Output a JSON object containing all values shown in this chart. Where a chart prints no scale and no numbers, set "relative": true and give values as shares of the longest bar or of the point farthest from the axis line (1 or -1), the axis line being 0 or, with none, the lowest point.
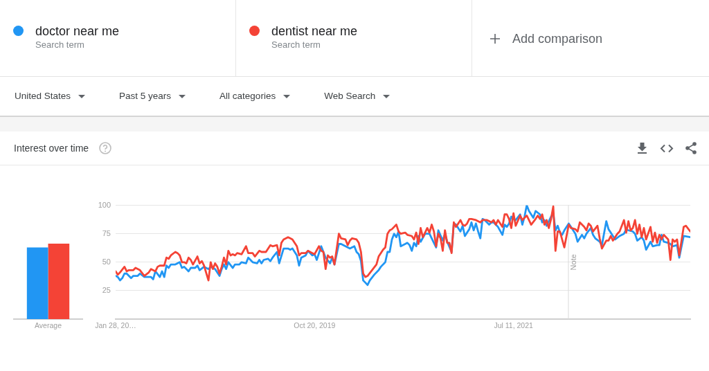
{
  "chart_data": [
    {
      "type": "bar",
      "categories": [
        "Average"
      ],
      "relative": true,
      "series": [
        {
          "color": "#2196f3",
          "values": [
            0.95
          ]
        },
        {
          "color": "#f44336",
          "values": [
            1
          ]
        }
      ]
    },
    {
      "type": "line",
      "title": "Interest over time",
      "annotations": [
        "Search term",
        "Search term",
        "Add comparison",
        "United States",
        "Past 5 years",
        "All categories",
        "Web Search"
      ],
      "legend": "top",
      "grid": "y",
      "xlim": [
        "2018-01-28",
        "2023-01-22"
      ],
      "xticks": [
        {
          "value": "2018-01-28",
          "label": "Jan 28, 20…"
        },
        {
          "value": "2019-10-20",
          "label": "Oct 20, 2019"
        },
        {
          "value": "2021-07-11",
          "label": "Jul 11, 2021"
        }
      ],
      "ylim": [
        0,
        100
      ],
      "yticks": [
        25,
        50,
        75,
        100
      ],
      "ref_lines": [
        {
          "axis": "x",
          "value": "2022-01-01",
          "label": "Note"
        }
      ],
      "series": [
        {
          "name": "doctor near me",
          "color": "#2196f3",
          "x": [
            "2018-01-28",
            "2018-02-04",
            "2018-02-11",
            "2018-02-18",
            "2018-02-25",
            "2018-03-04",
            "2018-03-18",
            "2018-03-25",
            "2018-04-08",
            "2018-04-15",
            "2018-04-29",
            "2018-05-13",
            "2018-05-20",
            "2018-05-27",
            "2018-06-03",
            "2018-06-17",
            "2018-06-24",
            "2018-07-01",
            "2018-07-08",
            "2018-07-15",
            "2018-07-22",
            "2018-08-05",
            "2018-08-19",
            "2018-08-26",
            "2018-09-02",
            "2018-09-16",
            "2018-09-23",
            "2018-10-07",
            "2018-10-14",
            "2018-10-21",
            "2018-11-04",
            "2018-11-18",
            "2018-11-25",
            "2018-12-09",
            "2018-12-23",
            "2018-12-30",
            "2019-01-06",
            "2019-01-13",
            "2019-01-20",
            "2019-02-03",
            "2019-02-10",
            "2019-02-24",
            "2019-03-03",
            "2019-03-17",
            "2019-03-24",
            "2019-04-07",
            "2019-04-21",
            "2019-04-28",
            "2019-05-05",
            "2019-05-12",
            "2019-05-26",
            "2019-06-02",
            "2019-06-09",
            "2019-06-23",
            "2019-06-30",
            "2019-07-14",
            "2019-07-28",
            "2019-08-04",
            "2019-08-11",
            "2019-08-25",
            "2019-09-01",
            "2019-09-08",
            "2019-09-22",
            "2019-09-29",
            "2019-10-13",
            "2019-10-20",
            "2019-10-27",
            "2019-11-10",
            "2019-11-17",
            "2019-11-24",
            "2019-12-08",
            "2019-12-15",
            "2019-12-22",
            "2020-01-05",
            "2020-01-12",
            "2020-01-26",
            "2020-02-09",
            "2020-02-23",
            "2020-03-01",
            "2020-03-08",
            "2020-03-15",
            "2020-03-22",
            "2020-03-29",
            "2020-04-05",
            "2020-04-12",
            "2020-04-26",
            "2020-05-10",
            "2020-05-17",
            "2020-05-31",
            "2020-06-07",
            "2020-06-14",
            "2020-06-21",
            "2020-06-28",
            "2020-07-05",
            "2020-07-12",
            "2020-07-19",
            "2020-08-02",
            "2020-08-09",
            "2020-08-16",
            "2020-08-23",
            "2020-08-30",
            "2020-09-06",
            "2020-09-13",
            "2020-09-20",
            "2020-10-04",
            "2020-10-18",
            "2020-10-25",
            "2020-11-08",
            "2020-11-15",
            "2020-11-29",
            "2020-12-06",
            "2020-12-13",
            "2020-12-27",
            "2021-01-03",
            "2021-01-10",
            "2021-01-24",
            "2021-01-31",
            "2021-02-07",
            "2021-02-21",
            "2021-02-28",
            "2021-03-07",
            "2021-03-14",
            "2021-03-21",
            "2021-03-28",
            "2021-04-04",
            "2021-04-11",
            "2021-04-25",
            "2021-05-02",
            "2021-05-09",
            "2021-05-16",
            "2021-05-23",
            "2021-06-06",
            "2021-06-13",
            "2021-06-20",
            "2021-06-27",
            "2021-07-04",
            "2021-07-11",
            "2021-07-18",
            "2021-08-01",
            "2021-08-08",
            "2021-08-15",
            "2021-08-22",
            "2021-08-29",
            "2021-09-12",
            "2021-09-19",
            "2021-10-03",
            "2021-10-10",
            "2021-10-17",
            "2021-10-24",
            "2021-11-07",
            "2021-11-14",
            "2021-11-21",
            "2021-11-28",
            "2021-12-05",
            "2021-12-12",
            "2021-12-19",
            "2022-01-02",
            "2022-01-09",
            "2022-01-23",
            "2022-01-30",
            "2022-02-13",
            "2022-02-20",
            "2022-02-27",
            "2022-03-13",
            "2022-03-20",
            "2022-03-27",
            "2022-04-10",
            "2022-04-17",
            "2022-05-01",
            "2022-05-08",
            "2022-05-22",
            "2022-05-29",
            "2022-06-12",
            "2022-06-26",
            "2022-07-03",
            "2022-07-10",
            "2022-07-24",
            "2022-07-31",
            "2022-08-07",
            "2022-08-21",
            "2022-08-28",
            "2022-09-04",
            "2022-09-18",
            "2022-09-25",
            "2022-10-09",
            "2022-10-16",
            "2022-10-23",
            "2022-10-30",
            "2022-11-13",
            "2022-11-20",
            "2022-11-27",
            "2022-12-11",
            "2022-12-18",
            "2023-01-01",
            "2023-01-22"
          ],
          "values": [
            38,
            37,
            34,
            36,
            40,
            40,
            36,
            38,
            38,
            40,
            37,
            37,
            37,
            35,
            42,
            37,
            42,
            37,
            47,
            45,
            48,
            48,
            50,
            45,
            46,
            42,
            45,
            45,
            47,
            43,
            46,
            44,
            46,
            44,
            38,
            44,
            48,
            44,
            50,
            45,
            48,
            48,
            50,
            49,
            54,
            50,
            49,
            52,
            49,
            52,
            53,
            51,
            54,
            59,
            49,
            62,
            62,
            61,
            62,
            56,
            47,
            54,
            56,
            60,
            56,
            57,
            52,
            64,
            59,
            54,
            49,
            54,
            48,
            66,
            66,
            64,
            62,
            64,
            59,
            57,
            51,
            34,
            32,
            30,
            34,
            39,
            43,
            46,
            50,
            59,
            59,
            70,
            75,
            72,
            77,
            64,
            66,
            67,
            65,
            60,
            67,
            64,
            73,
            68,
            75,
            75,
            71,
            63,
            78,
            69,
            75,
            68,
            59,
            84,
            83,
            77,
            82,
            73,
            79,
            85,
            78,
            84,
            77,
            71,
            88,
            87,
            83,
            85,
            85,
            83,
            81,
            74,
            83,
            81,
            84,
            90,
            88,
            87,
            92,
            83,
            90,
            100,
            95,
            89,
            95,
            92,
            85,
            87,
            82,
            90,
            93,
            78,
            82,
            76,
            74,
            78,
            84,
            81,
            75,
            68,
            74,
            71,
            75,
            80,
            74,
            71,
            68,
            65,
            86,
            79,
            73,
            70,
            73,
            75,
            79,
            78,
            77,
            75,
            69,
            72,
            69,
            61,
            68,
            64,
            65,
            65,
            74,
            68,
            67,
            66,
            64,
            65,
            54,
            73,
            72
          ]
        },
        {
          "name": "dentist near me",
          "color": "#f44336",
          "x": [
            "2018-01-28",
            "2018-02-04",
            "2018-02-11",
            "2018-02-25",
            "2018-03-04",
            "2018-03-11",
            "2018-03-25",
            "2018-04-01",
            "2018-04-15",
            "2018-04-29",
            "2018-05-13",
            "2018-05-20",
            "2018-06-03",
            "2018-06-10",
            "2018-06-17",
            "2018-07-01",
            "2018-07-08",
            "2018-07-15",
            "2018-07-22",
            "2018-08-05",
            "2018-08-12",
            "2018-08-19",
            "2018-08-26",
            "2018-09-02",
            "2018-09-09",
            "2018-09-16",
            "2018-09-23",
            "2018-09-30",
            "2018-10-14",
            "2018-10-21",
            "2018-10-28",
            "2018-11-04",
            "2018-11-18",
            "2018-11-25",
            "2018-12-02",
            "2018-12-09",
            "2018-12-16",
            "2018-12-23",
            "2018-12-30",
            "2019-01-06",
            "2019-01-13",
            "2019-01-20",
            "2019-01-27",
            "2019-02-03",
            "2019-02-10",
            "2019-02-17",
            "2019-03-03",
            "2019-03-17",
            "2019-03-24",
            "2019-04-07",
            "2019-04-14",
            "2019-04-28",
            "2019-05-05",
            "2019-05-19",
            "2019-06-02",
            "2019-06-09",
            "2019-06-23",
            "2019-06-30",
            "2019-07-07",
            "2019-07-14",
            "2019-07-28",
            "2019-08-04",
            "2019-08-11",
            "2019-08-25",
            "2019-09-01",
            "2019-09-08",
            "2019-09-22",
            "2019-09-29",
            "2019-10-13",
            "2019-10-20",
            "2019-11-03",
            "2019-11-10",
            "2019-11-17",
            "2019-11-24",
            "2019-12-01",
            "2019-12-08",
            "2019-12-15",
            "2019-12-22",
            "2020-01-05",
            "2020-01-12",
            "2020-01-26",
            "2020-02-02",
            "2020-02-09",
            "2020-02-16",
            "2020-03-01",
            "2020-03-08",
            "2020-03-15",
            "2020-03-22",
            "2020-03-29",
            "2020-04-05",
            "2020-04-19",
            "2020-05-03",
            "2020-05-10",
            "2020-05-24",
            "2020-05-31",
            "2020-06-07",
            "2020-06-14",
            "2020-06-21",
            "2020-07-05",
            "2020-07-12",
            "2020-07-19",
            "2020-08-02",
            "2020-08-09",
            "2020-08-23",
            "2020-08-30",
            "2020-09-06",
            "2020-09-13",
            "2020-09-20",
            "2020-09-27",
            "2020-10-04",
            "2020-10-11",
            "2020-10-18",
            "2020-10-25",
            "2020-11-01",
            "2020-11-08",
            "2020-11-15",
            "2020-11-22",
            "2020-11-29",
            "2020-12-06",
            "2020-12-13",
            "2020-12-20",
            "2020-12-27",
            "2021-01-03",
            "2021-01-10",
            "2021-01-17",
            "2021-01-24",
            "2021-01-31",
            "2021-02-07",
            "2021-02-14",
            "2021-02-21",
            "2021-02-28",
            "2021-03-14",
            "2021-03-28",
            "2021-04-04",
            "2021-04-18",
            "2021-04-25",
            "2021-05-02",
            "2021-05-09",
            "2021-05-16",
            "2021-05-23",
            "2021-06-06",
            "2021-06-13",
            "2021-06-20",
            "2021-06-27",
            "2021-07-04",
            "2021-07-11",
            "2021-07-18",
            "2021-08-01",
            "2021-08-08",
            "2021-08-22",
            "2021-08-29",
            "2021-09-05",
            "2021-09-19",
            "2021-09-26",
            "2021-10-03",
            "2021-10-10",
            "2021-10-17",
            "2021-10-24",
            "2021-10-31",
            "2021-11-07",
            "2021-11-14",
            "2021-11-21",
            "2021-11-28",
            "2021-12-05",
            "2021-12-19",
            "2022-01-02",
            "2022-01-09",
            "2022-01-23",
            "2022-01-30",
            "2022-02-06",
            "2022-02-20",
            "2022-02-27",
            "2022-03-06",
            "2022-03-13",
            "2022-03-20",
            "2022-04-03",
            "2022-04-10",
            "2022-04-17",
            "2022-05-01",
            "2022-05-08",
            "2022-05-15",
            "2022-05-22",
            "2022-06-05",
            "2022-06-12",
            "2022-06-26",
            "2022-07-03",
            "2022-07-10",
            "2022-07-17",
            "2022-07-24",
            "2022-07-31",
            "2022-08-07",
            "2022-08-14",
            "2022-08-21",
            "2022-08-28",
            "2022-09-04",
            "2022-09-18",
            "2022-09-25",
            "2022-10-02",
            "2022-10-09",
            "2022-10-16",
            "2022-10-23",
            "2022-10-30",
            "2022-11-13",
            "2022-11-20",
            "2022-11-27",
            "2022-12-04",
            "2022-12-11",
            "2022-12-18",
            "2023-01-01",
            "2023-01-08",
            "2023-01-22"
          ],
          "values": [
            42,
            39,
            41,
            46,
            42,
            43,
            43,
            45,
            43,
            38,
            41,
            44,
            42,
            46,
            47,
            47,
            54,
            53,
            56,
            59,
            58,
            56,
            50,
            50,
            49,
            54,
            52,
            48,
            55,
            49,
            51,
            47,
            34,
            50,
            44,
            49,
            46,
            40,
            46,
            54,
            48,
            60,
            56,
            57,
            56,
            58,
            57,
            64,
            58,
            58,
            55,
            60,
            59,
            59,
            65,
            64,
            65,
            56,
            67,
            70,
            72,
            71,
            70,
            64,
            56,
            58,
            58,
            60,
            58,
            57,
            64,
            60,
            59,
            44,
            56,
            54,
            55,
            48,
            75,
            71,
            70,
            65,
            69,
            71,
            70,
            67,
            59,
            40,
            37,
            38,
            43,
            48,
            55,
            61,
            63,
            75,
            78,
            79,
            83,
            77,
            75,
            76,
            74,
            73,
            70,
            76,
            66,
            80,
            72,
            76,
            80,
            76,
            83,
            77,
            64,
            75,
            71,
            60,
            78,
            67,
            67,
            58,
            85,
            81,
            84,
            87,
            83,
            82,
            84,
            88,
            88,
            87,
            85,
            87,
            87,
            86,
            85,
            87,
            83,
            87,
            81,
            92,
            92,
            88,
            80,
            93,
            82,
            91,
            87,
            91,
            87,
            83,
            88,
            91,
            88,
            92,
            83,
            87,
            80,
            88,
            99,
            60,
            77,
            77,
            63,
            83,
            80,
            79,
            77,
            85,
            81,
            78,
            84,
            82,
            77,
            82,
            71,
            62,
            69,
            69,
            73,
            69,
            75,
            77,
            87,
            76,
            86,
            78,
            80,
            87,
            75,
            83,
            72,
            80,
            70,
            81,
            68,
            76,
            67,
            74,
            70,
            74,
            70,
            52,
            70,
            68,
            70,
            56,
            81,
            82,
            77
          ]
        }
      ]
    }
  ]
}
